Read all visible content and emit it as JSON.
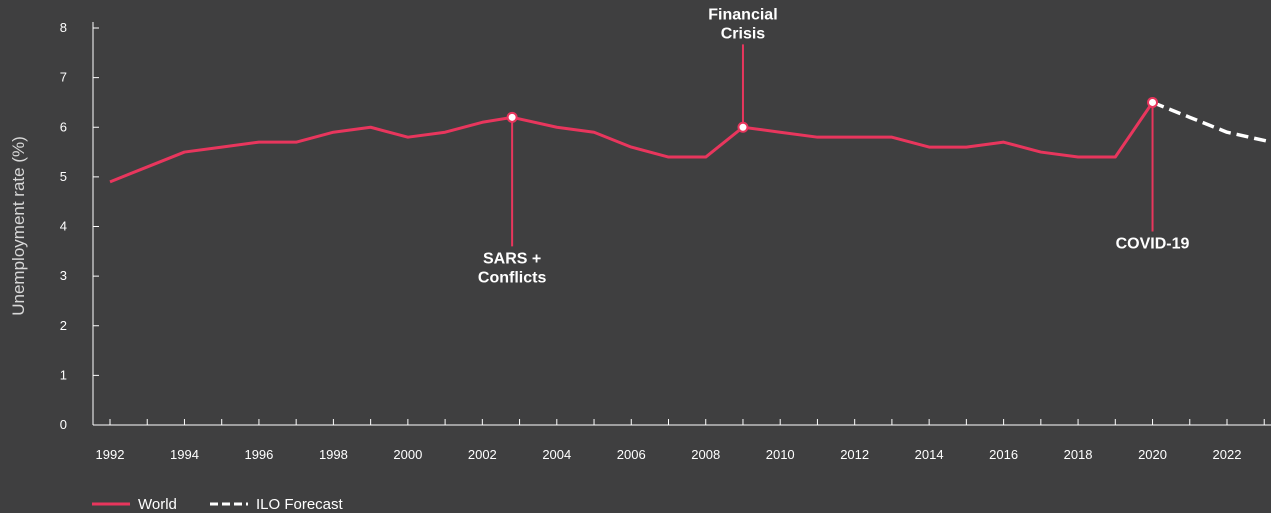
{
  "chart_data": {
    "type": "line",
    "title": "",
    "xlabel": "",
    "ylabel": "Unemployment rate (%)",
    "ylim": [
      0,
      8
    ],
    "xlim": [
      1991.5,
      2023.2
    ],
    "yticks": [
      0,
      1,
      2,
      3,
      4,
      5,
      6,
      7,
      8
    ],
    "xticks": [
      1992,
      1994,
      1996,
      1998,
      2000,
      2002,
      2004,
      2006,
      2008,
      2010,
      2012,
      2014,
      2016,
      2018,
      2020,
      2022
    ],
    "grid": false,
    "legend_position": "bottom-left",
    "series": [
      {
        "name": "World",
        "color": "#e8365d",
        "style": "solid",
        "x": [
          1992,
          1993,
          1994,
          1995,
          1996,
          1997,
          1998,
          1999,
          2000,
          2001,
          2002,
          2002.8,
          2004,
          2005,
          2006,
          2007,
          2008,
          2009,
          2010,
          2011,
          2012,
          2013,
          2014,
          2015,
          2016,
          2017,
          2018,
          2019,
          2020
        ],
        "y": [
          4.9,
          5.2,
          5.5,
          5.6,
          5.7,
          5.7,
          5.9,
          6.0,
          5.8,
          5.9,
          6.1,
          6.2,
          6.0,
          5.9,
          5.6,
          5.4,
          5.4,
          6.0,
          5.9,
          5.8,
          5.8,
          5.8,
          5.6,
          5.6,
          5.7,
          5.5,
          5.4,
          5.4,
          6.5
        ]
      },
      {
        "name": "ILO Forecast",
        "color": "#ffffff",
        "style": "dashed",
        "x": [
          2020,
          2021,
          2022,
          2023.2
        ],
        "y": [
          6.5,
          6.2,
          5.9,
          5.7
        ]
      }
    ],
    "annotations": [
      {
        "lines": [
          "SARS +",
          "Conflicts"
        ],
        "x": 2002.8,
        "y": 6.2,
        "label_y": 3.8,
        "placement": "below"
      },
      {
        "lines": [
          "Financial",
          "Crisis"
        ],
        "x": 2009,
        "y": 6.0,
        "label_y": 7.55,
        "placement": "above"
      },
      {
        "lines": [
          "COVID-19"
        ],
        "x": 2020,
        "y": 6.5,
        "label_y": 4.1,
        "placement": "below"
      }
    ]
  }
}
